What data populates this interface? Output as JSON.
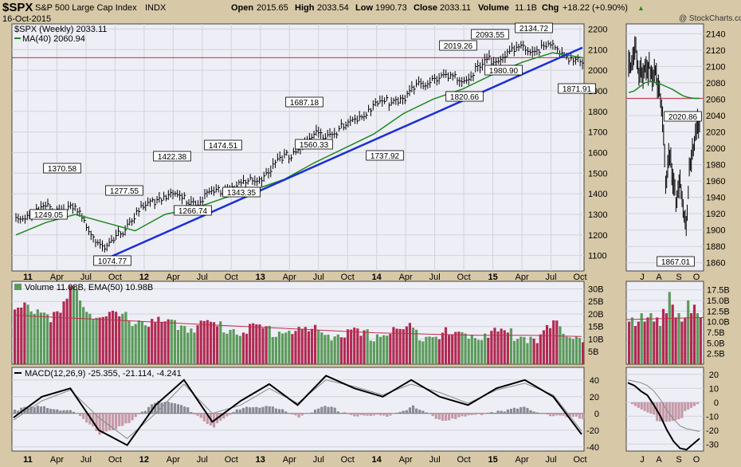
{
  "header": {
    "ticker": "$SPX",
    "name": "S&P 500 Large Cap Index",
    "exchange": "INDX",
    "date": "16-Oct-2015",
    "open_label": "Open",
    "open": "2015.65",
    "high_label": "High",
    "high": "2033.54",
    "low_label": "Low",
    "low": "1990.73",
    "close_label": "Close",
    "close": "2033.11",
    "volume_label": "Volume",
    "volume": "11.1B",
    "chg_label": "Chg",
    "chg": "+18.22 (+0.90%)",
    "watermark": "@ StockCharts.com"
  },
  "colors": {
    "background": "#d7c9a7",
    "panel": "#eeeef6",
    "up_volume": "#5b9a5b",
    "down_volume": "#b02a52",
    "ma": "#1e8a1e",
    "trendline": "#1c2fd6",
    "horizontal_line": "#c0304a",
    "histogram": "#8a8a96",
    "histogram_neg": "#c49aa6"
  },
  "chart_data": [
    {
      "type": "line",
      "panel": "weekly-price",
      "legend": [
        "$SPX (Weekly) 2033.11",
        "MA(40) 2060.94"
      ],
      "y_ticks": [
        1100,
        1200,
        1300,
        1400,
        1500,
        1600,
        1700,
        1800,
        1900,
        2000,
        2100,
        2200
      ],
      "ylim": [
        1025,
        2225
      ],
      "x_ticks": [
        "11",
        "Apr",
        "Jul",
        "Oct",
        "12",
        "Apr",
        "Jul",
        "Oct",
        "13",
        "Apr",
        "Jul",
        "Oct",
        "14",
        "Apr",
        "Jul",
        "Oct",
        "15",
        "Apr",
        "Jul",
        "Oct"
      ],
      "x": [
        "2011-01",
        "2011-04",
        "2011-07",
        "2011-10",
        "2012-01",
        "2012-04",
        "2012-07",
        "2012-10",
        "2013-01",
        "2013-04",
        "2013-07",
        "2013-10",
        "2014-01",
        "2014-04",
        "2014-07",
        "2014-10",
        "2015-01",
        "2015-04",
        "2015-07",
        "2015-10"
      ],
      "close": [
        1280,
        1330,
        1320,
        1120,
        1300,
        1400,
        1360,
        1430,
        1460,
        1570,
        1680,
        1720,
        1830,
        1870,
        1970,
        1950,
        2060,
        2100,
        2110,
        2030
      ],
      "ma40": [
        1200,
        1260,
        1300,
        1260,
        1220,
        1300,
        1330,
        1380,
        1420,
        1470,
        1550,
        1620,
        1690,
        1790,
        1860,
        1910,
        1980,
        2040,
        2085,
        2061
      ],
      "price_labels": [
        "1370.58",
        "1249.05",
        "1074.77",
        "1277.55",
        "1422.38",
        "1266.74",
        "1474.51",
        "1343.35",
        "1687.18",
        "1560.33",
        "1737.92",
        "2019.26",
        "1820.66",
        "2093.55",
        "1980.90",
        "2134.72",
        "1871.91"
      ],
      "horizontal_line": 2061
    },
    {
      "type": "bar",
      "panel": "weekly-volume",
      "legend": [
        "Volume 11.08B, EMA(50) 10.98B"
      ],
      "y_ticks": [
        "5B",
        "10B",
        "15B",
        "20B",
        "25B",
        "30B"
      ],
      "ylim": [
        0,
        33
      ],
      "values_b": [
        20,
        23,
        21,
        18,
        31,
        22,
        18,
        19,
        18,
        17,
        16,
        16,
        15,
        16,
        15,
        14,
        14,
        14,
        13,
        14,
        13,
        13,
        12,
        12,
        11,
        12,
        13,
        14,
        12,
        13,
        11,
        12,
        12,
        13,
        12,
        11,
        11,
        15,
        13,
        11
      ],
      "ema50_b": [
        19.5,
        18.5,
        17.5,
        16.5,
        15.5,
        14.5,
        13.5,
        12.5,
        12,
        11.5,
        11.5,
        11
      ]
    },
    {
      "type": "line",
      "panel": "weekly-macd",
      "legend": [
        "MACD(12,26,9) -25.355, -21.114, -4.241"
      ],
      "y_ticks": [
        -40,
        -20,
        0,
        20,
        40
      ],
      "ylim": [
        -45,
        55
      ],
      "macd": [
        -5,
        20,
        30,
        -20,
        -38,
        10,
        40,
        -10,
        15,
        35,
        10,
        45,
        30,
        20,
        40,
        20,
        10,
        30,
        40,
        20,
        -25
      ],
      "signal": [
        -8,
        15,
        28,
        -5,
        -30,
        0,
        35,
        0,
        10,
        30,
        12,
        40,
        32,
        22,
        35,
        25,
        12,
        28,
        36,
        22,
        -21
      ]
    },
    {
      "type": "line",
      "panel": "daily-price",
      "y_ticks": [
        1860,
        1880,
        1900,
        1920,
        1940,
        1960,
        1980,
        2000,
        2020,
        2040,
        2060,
        2080,
        2100,
        2120,
        2140
      ],
      "ylim": [
        1850,
        2152
      ],
      "x_ticks": [
        "J",
        "A",
        "S",
        "O"
      ],
      "price_labels": [
        "2020.86",
        "1867.01"
      ],
      "close": [
        2110,
        2105,
        2120,
        2085,
        2095,
        2100,
        2100,
        2080,
        2090,
        2075,
        2050,
        1950,
        1990,
        1970,
        1940,
        1960,
        1925,
        1900,
        1980,
        2000,
        2020,
        2033
      ],
      "ma": [
        2068,
        2070,
        2075,
        2080,
        2082,
        2080,
        2078,
        2075,
        2072,
        2068,
        2064,
        2062,
        2061,
        2061
      ]
    },
    {
      "type": "bar",
      "panel": "daily-volume",
      "y_ticks": [
        "2.5B",
        "5.0B",
        "7.5B",
        "10.0B",
        "12.5B",
        "15.0B",
        "17.5B"
      ],
      "ylim": [
        0,
        19.5
      ]
    },
    {
      "type": "line",
      "panel": "daily-macd",
      "y_ticks": [
        -30,
        -20,
        -10,
        0,
        10,
        20
      ],
      "ylim": [
        -35,
        25
      ]
    }
  ]
}
